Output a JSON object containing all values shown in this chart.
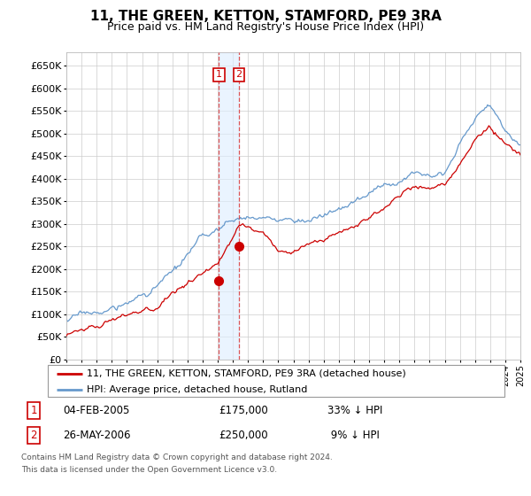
{
  "title": "11, THE GREEN, KETTON, STAMFORD, PE9 3RA",
  "subtitle": "Price paid vs. HM Land Registry's House Price Index (HPI)",
  "ylim": [
    0,
    680000
  ],
  "yticks": [
    0,
    50000,
    100000,
    150000,
    200000,
    250000,
    300000,
    350000,
    400000,
    450000,
    500000,
    550000,
    600000,
    650000
  ],
  "x_start_year": 1995,
  "x_end_year": 2025,
  "transaction1_year": 2005.08,
  "transaction1_price": 175000,
  "transaction2_year": 2006.4,
  "transaction2_price": 250000,
  "red_line_color": "#cc0000",
  "blue_line_color": "#6699cc",
  "dashed_line_color": "#dd4444",
  "shade_color": "#ddeeff",
  "legend_entry1": "11, THE GREEN, KETTON, STAMFORD, PE9 3RA (detached house)",
  "legend_entry2": "HPI: Average price, detached house, Rutland",
  "footnote_line1": "Contains HM Land Registry data © Crown copyright and database right 2024.",
  "footnote_line2": "This data is licensed under the Open Government Licence v3.0.",
  "grid_color": "#cccccc",
  "background_color": "#ffffff"
}
